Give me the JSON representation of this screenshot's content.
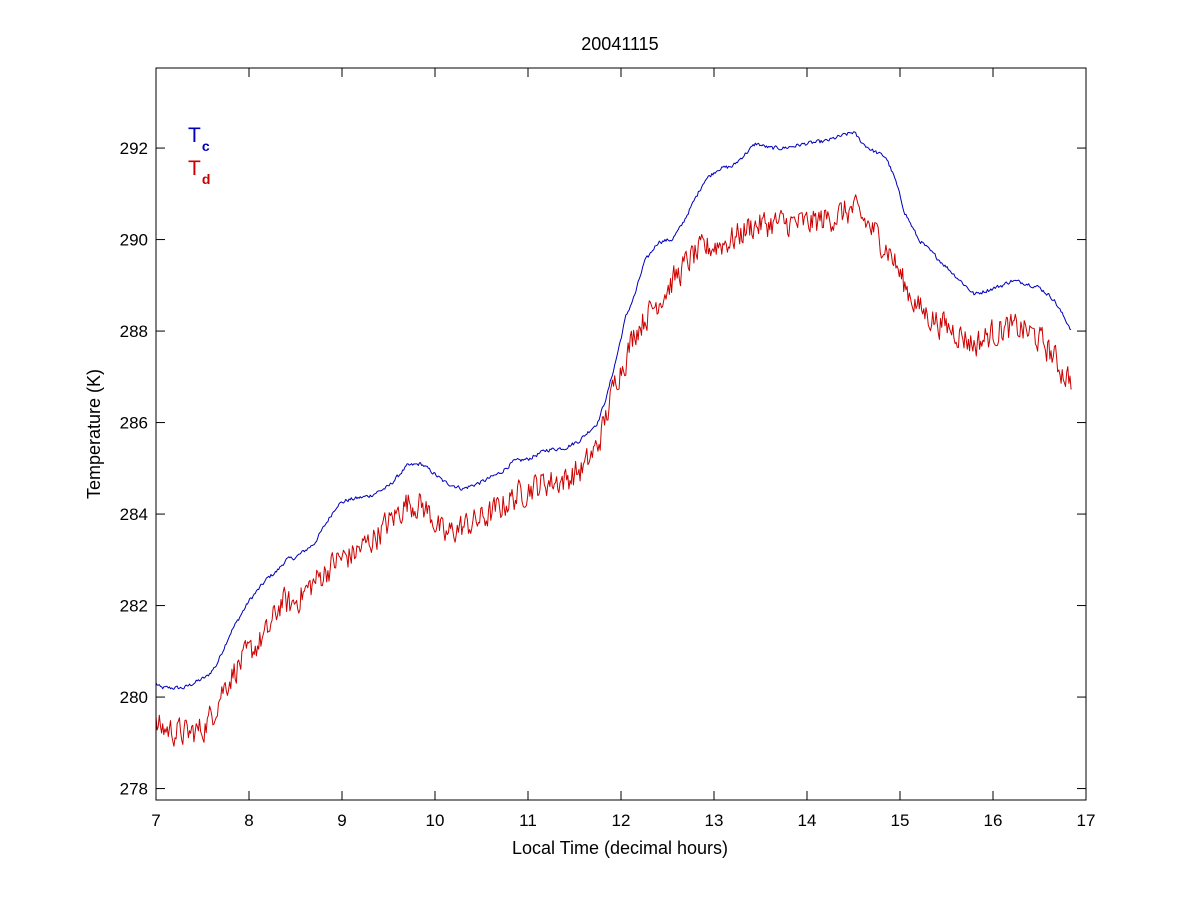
{
  "chart_data": {
    "type": "line",
    "title": "20041115",
    "xlabel": "Local Time (decimal hours)",
    "ylabel": "Temperature (K)",
    "xlim": [
      7,
      17
    ],
    "ylim": [
      277.75,
      293.75
    ],
    "xticks": [
      7,
      8,
      9,
      10,
      11,
      12,
      13,
      14,
      15,
      16,
      17
    ],
    "yticks": [
      278,
      280,
      282,
      284,
      286,
      288,
      290,
      292
    ],
    "grid": false,
    "legend_position": "top-left",
    "series": [
      {
        "name": "T",
        "subscript": "c",
        "color": "#0000bb",
        "noise": 0.04,
        "points": [
          [
            7.0,
            280.3
          ],
          [
            7.05,
            280.2
          ],
          [
            7.3,
            280.2
          ],
          [
            7.4,
            280.3
          ],
          [
            7.55,
            280.45
          ],
          [
            7.65,
            280.7
          ],
          [
            7.8,
            281.4
          ],
          [
            8.0,
            282.1
          ],
          [
            8.2,
            282.6
          ],
          [
            8.3,
            282.75
          ],
          [
            8.4,
            283.0
          ],
          [
            8.5,
            283.05
          ],
          [
            8.7,
            283.35
          ],
          [
            8.8,
            283.7
          ],
          [
            8.95,
            284.2
          ],
          [
            9.05,
            284.3
          ],
          [
            9.3,
            284.4
          ],
          [
            9.5,
            284.6
          ],
          [
            9.7,
            285.05
          ],
          [
            9.85,
            285.1
          ],
          [
            9.95,
            284.95
          ],
          [
            10.1,
            284.7
          ],
          [
            10.3,
            284.55
          ],
          [
            10.5,
            284.7
          ],
          [
            10.7,
            284.9
          ],
          [
            10.85,
            285.15
          ],
          [
            11.0,
            285.2
          ],
          [
            11.2,
            285.4
          ],
          [
            11.4,
            285.45
          ],
          [
            11.55,
            285.6
          ],
          [
            11.75,
            286.0
          ],
          [
            11.85,
            286.6
          ],
          [
            11.95,
            287.4
          ],
          [
            12.05,
            288.3
          ],
          [
            12.15,
            288.8
          ],
          [
            12.25,
            289.5
          ],
          [
            12.4,
            289.95
          ],
          [
            12.55,
            290.0
          ],
          [
            12.65,
            290.3
          ],
          [
            12.75,
            290.7
          ],
          [
            12.9,
            291.3
          ],
          [
            13.05,
            291.55
          ],
          [
            13.2,
            291.6
          ],
          [
            13.35,
            291.9
          ],
          [
            13.45,
            292.1
          ],
          [
            13.6,
            292.0
          ],
          [
            13.75,
            292.0
          ],
          [
            14.0,
            292.1
          ],
          [
            14.2,
            292.15
          ],
          [
            14.35,
            292.25
          ],
          [
            14.5,
            292.35
          ],
          [
            14.6,
            292.1
          ],
          [
            14.7,
            291.95
          ],
          [
            14.85,
            291.8
          ],
          [
            14.95,
            291.3
          ],
          [
            15.05,
            290.6
          ],
          [
            15.2,
            290.0
          ],
          [
            15.4,
            289.6
          ],
          [
            15.6,
            289.2
          ],
          [
            15.8,
            288.8
          ],
          [
            15.95,
            288.9
          ],
          [
            16.1,
            289.0
          ],
          [
            16.2,
            289.1
          ],
          [
            16.35,
            289.05
          ],
          [
            16.5,
            288.95
          ],
          [
            16.65,
            288.7
          ],
          [
            16.75,
            288.35
          ],
          [
            16.85,
            288.0
          ]
        ]
      },
      {
        "name": "T",
        "subscript": "d",
        "color": "#cc0000",
        "noise": 0.28,
        "points": [
          [
            7.0,
            279.35
          ],
          [
            7.2,
            279.25
          ],
          [
            7.35,
            279.2
          ],
          [
            7.5,
            279.3
          ],
          [
            7.6,
            279.6
          ],
          [
            7.7,
            280.1
          ],
          [
            7.85,
            280.6
          ],
          [
            8.0,
            280.95
          ],
          [
            8.2,
            281.4
          ],
          [
            8.35,
            282.1
          ],
          [
            8.45,
            282.0
          ],
          [
            8.6,
            282.3
          ],
          [
            8.8,
            282.7
          ],
          [
            8.95,
            283.0
          ],
          [
            9.1,
            283.1
          ],
          [
            9.3,
            283.4
          ],
          [
            9.5,
            283.8
          ],
          [
            9.7,
            284.25
          ],
          [
            9.85,
            284.2
          ],
          [
            9.95,
            284.0
          ],
          [
            10.1,
            283.5
          ],
          [
            10.2,
            283.65
          ],
          [
            10.4,
            283.8
          ],
          [
            10.6,
            284.0
          ],
          [
            10.8,
            284.3
          ],
          [
            11.0,
            284.55
          ],
          [
            11.2,
            284.7
          ],
          [
            11.4,
            284.75
          ],
          [
            11.6,
            285.0
          ],
          [
            11.75,
            285.5
          ],
          [
            11.85,
            286.2
          ],
          [
            11.95,
            287.0
          ],
          [
            12.05,
            287.4
          ],
          [
            12.15,
            288.0
          ],
          [
            12.3,
            288.4
          ],
          [
            12.45,
            288.8
          ],
          [
            12.6,
            289.2
          ],
          [
            12.75,
            289.6
          ],
          [
            12.9,
            289.8
          ],
          [
            13.05,
            289.9
          ],
          [
            13.2,
            290.0
          ],
          [
            13.4,
            290.3
          ],
          [
            13.6,
            290.35
          ],
          [
            13.8,
            290.35
          ],
          [
            14.0,
            290.35
          ],
          [
            14.2,
            290.45
          ],
          [
            14.35,
            290.55
          ],
          [
            14.5,
            290.65
          ],
          [
            14.6,
            290.45
          ],
          [
            14.75,
            290.1
          ],
          [
            14.9,
            289.7
          ],
          [
            15.05,
            289.0
          ],
          [
            15.2,
            288.5
          ],
          [
            15.4,
            288.2
          ],
          [
            15.6,
            288.0
          ],
          [
            15.8,
            287.7
          ],
          [
            15.95,
            287.9
          ],
          [
            16.1,
            288.05
          ],
          [
            16.3,
            288.05
          ],
          [
            16.45,
            287.9
          ],
          [
            16.6,
            287.6
          ],
          [
            16.75,
            287.1
          ],
          [
            16.85,
            286.95
          ]
        ]
      }
    ]
  }
}
